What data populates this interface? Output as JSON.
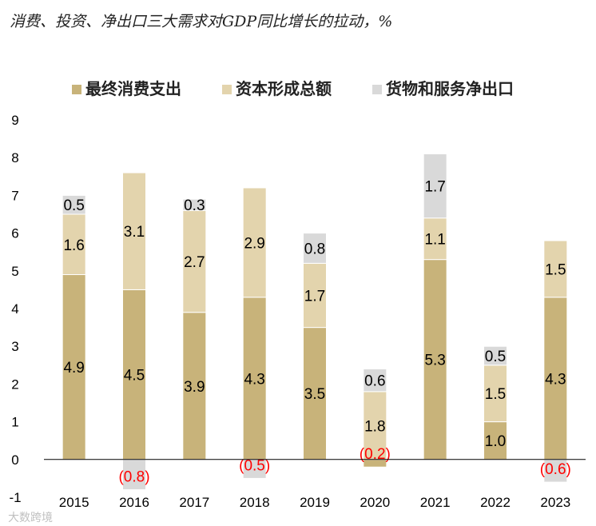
{
  "chart_data": {
    "type": "bar",
    "stacked": true,
    "title": "消费、投资、净出口三大需求对GDP同比增长的拉动，%",
    "xlabel": "",
    "ylabel": "",
    "ylim": [
      -1,
      9
    ],
    "yticks": [
      "9",
      "8",
      "7",
      "6",
      "5",
      "4",
      "3",
      "2",
      "1",
      "0",
      "-1"
    ],
    "legend_position": "top",
    "categories": [
      "2015",
      "2016",
      "2017",
      "2018",
      "2019",
      "2020",
      "2021",
      "2022",
      "2023"
    ],
    "series": [
      {
        "name": "最终消费支出",
        "color": "#c8b37a",
        "values": [
          4.9,
          4.5,
          3.9,
          4.3,
          3.5,
          -0.2,
          5.3,
          1.0,
          4.3
        ],
        "labels": [
          "4.9",
          "4.5",
          "3.9",
          "4.3",
          "3.5",
          "(0.2)",
          "5.3",
          "1.0",
          "4.3"
        ]
      },
      {
        "name": "资本形成总额",
        "color": "#e3d4ad",
        "values": [
          1.6,
          3.1,
          2.7,
          2.9,
          1.7,
          1.8,
          1.1,
          1.5,
          1.5
        ],
        "labels": [
          "1.6",
          "3.1",
          "2.7",
          "2.9",
          "1.7",
          "1.8",
          "1.1",
          "1.5",
          "1.5"
        ]
      },
      {
        "name": "货物和服务净出口",
        "color": "#d9d9d9",
        "values": [
          0.5,
          -0.8,
          0.3,
          -0.5,
          0.8,
          0.6,
          1.7,
          0.5,
          -0.6
        ],
        "labels": [
          "0.5",
          "(0.8)",
          "0.3",
          "(0.5)",
          "0.8",
          "0.6",
          "1.7",
          "0.5",
          "(0.6)"
        ]
      }
    ],
    "negative_label_color": "#ff0000",
    "watermark": "大数跨境"
  }
}
